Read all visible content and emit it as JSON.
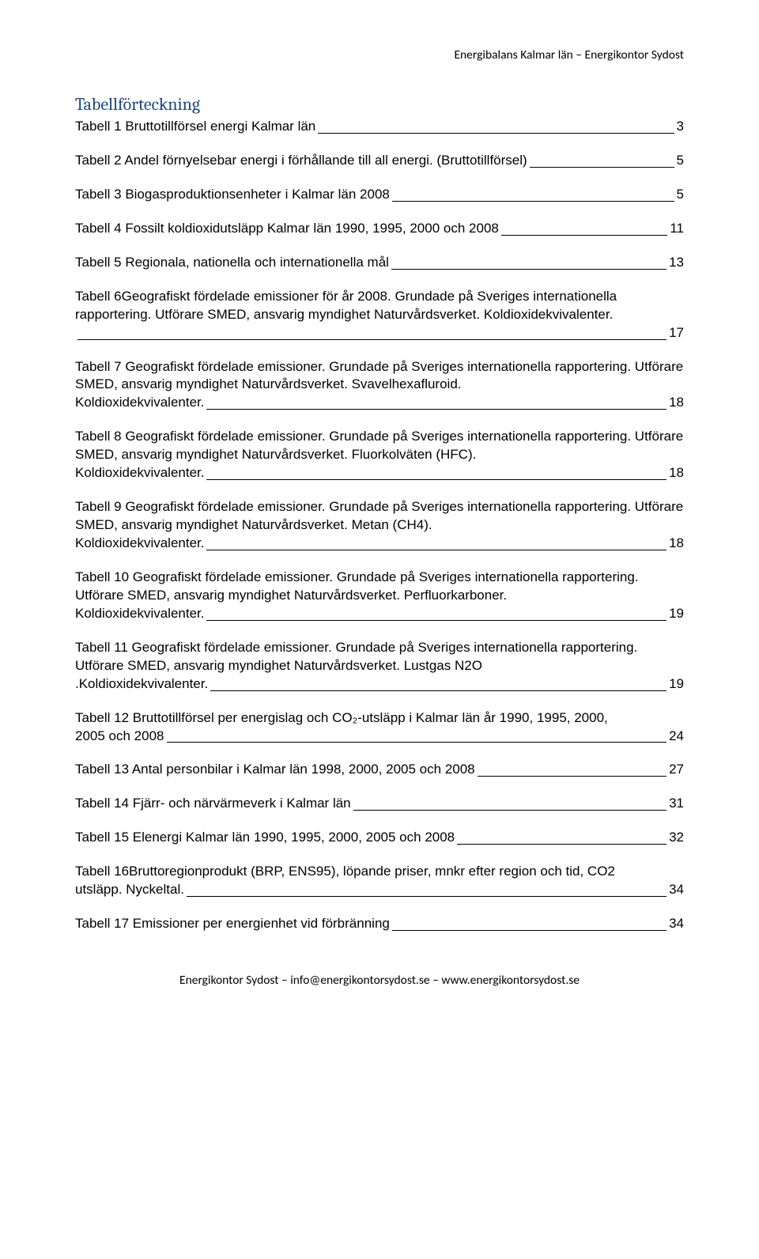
{
  "header": "Energibalans Kalmar län – Energikontor Sydost",
  "title": "Tabellförteckning",
  "title_color": "#1f497d",
  "title_font": "Cambria, Georgia, serif",
  "body_font": "Arial, Helvetica, sans-serif",
  "body_fontsize": 17,
  "text_color": "#000000",
  "background_color": "#ffffff",
  "footer": "Energikontor Sydost – info@energikontorsydost.se – www.energikontorsydost.se",
  "entries": [
    {
      "text": "Tabell 1 Bruttotillförsel energi Kalmar län",
      "page": "3"
    },
    {
      "text": "Tabell 2 Andel förnyelsebar energi i förhållande till all energi. (Bruttotillförsel)",
      "page": "5",
      "multiline": true,
      "first": "Tabell 2 Andel förnyelsebar energi i förhållande till all energi. (Bruttotillförsel)",
      "last": ""
    },
    {
      "text": "Tabell 3 Biogasproduktionsenheter i Kalmar län 2008",
      "page": "5"
    },
    {
      "text": "Tabell 4 Fossilt koldioxidutsläpp Kalmar län 1990, 1995, 2000 och 2008",
      "page": "11"
    },
    {
      "text": "Tabell 5 Regionala, nationella och internationella mål",
      "page": "13"
    },
    {
      "first": "Tabell 6Geografiskt fördelade emissioner för år 2008. Grundade på Sveriges internationella rapportering. Utförare SMED, ansvarig myndighet Naturvårdsverket. Koldioxidekvivalenter.",
      "last": "",
      "page": "17",
      "multiline": true
    },
    {
      "first": "Tabell 7 Geografiskt fördelade emissioner. Grundade på Sveriges internationella rapportering. Utförare SMED, ansvarig myndighet Naturvårdsverket. Svavelhexafluroid.",
      "last": "Koldioxidekvivalenter.",
      "page": "18",
      "multiline": true
    },
    {
      "first": "Tabell 8 Geografiskt fördelade emissioner. Grundade på Sveriges internationella rapportering. Utförare SMED, ansvarig myndighet Naturvårdsverket. Fluorkolväten (HFC).",
      "last": "Koldioxidekvivalenter.",
      "page": "18",
      "multiline": true
    },
    {
      "first": "Tabell 9 Geografiskt fördelade emissioner. Grundade på Sveriges internationella rapportering. Utförare SMED, ansvarig myndighet Naturvårdsverket. Metan (CH4).",
      "last": "Koldioxidekvivalenter.",
      "page": "18",
      "multiline": true
    },
    {
      "first": "Tabell 10 Geografiskt fördelade emissioner. Grundade på Sveriges internationella rapportering. Utförare SMED, ansvarig myndighet Naturvårdsverket. Perfluorkarboner.",
      "last": "Koldioxidekvivalenter.",
      "page": "19",
      "multiline": true
    },
    {
      "first": "Tabell 11 Geografiskt fördelade emissioner. Grundade på Sveriges internationella rapportering. Utförare SMED, ansvarig myndighet Naturvårdsverket. Lustgas N2O",
      "last": ".Koldioxidekvivalenter.",
      "page": "19",
      "multiline": true
    },
    {
      "first": "Tabell 12 Bruttotillförsel per energislag och CO₂-utsläpp i Kalmar län år 1990, 1995, 2000,",
      "last": "2005 och 2008",
      "page": "24",
      "multiline": true
    },
    {
      "text": "Tabell 13 Antal personbilar i Kalmar län 1998, 2000, 2005 och 2008",
      "page": "27"
    },
    {
      "text": "Tabell 14 Fjärr- och närvärmeverk i Kalmar län",
      "page": "31"
    },
    {
      "text": "Tabell 15 Elenergi Kalmar län 1990, 1995, 2000, 2005 och 2008",
      "page": "32"
    },
    {
      "first": "Tabell 16Bruttoregionprodukt (BRP, ENS95), löpande priser, mnkr efter region och tid, CO2",
      "last": "utsläpp. Nyckeltal.",
      "page": "34",
      "multiline": true
    },
    {
      "text": "Tabell 17 Emissioner per energienhet vid förbränning",
      "page": "34"
    }
  ]
}
